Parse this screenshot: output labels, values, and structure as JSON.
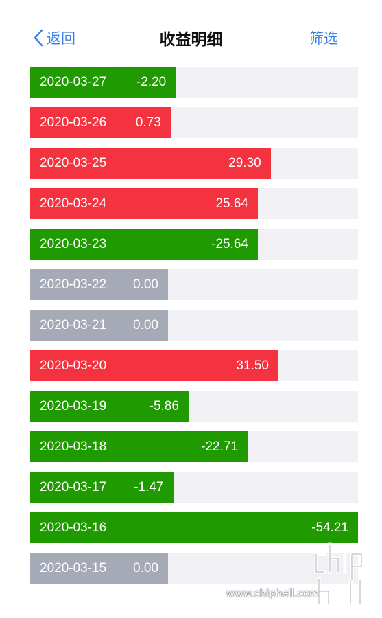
{
  "nav": {
    "back_label": "返回",
    "title": "收益明细",
    "filter_label": "筛选"
  },
  "colors": {
    "positive": "#f5323f",
    "negative": "#1f9a00",
    "zero": "#a6a9b6",
    "track": "#f1f1f5",
    "link": "#3a82e6"
  },
  "icons": {
    "back": "chevron-left-icon"
  },
  "records": [
    {
      "date": "2020-03-27",
      "amount": "-2.20",
      "value": -2.2
    },
    {
      "date": "2020-03-26",
      "amount": "0.73",
      "value": 0.73
    },
    {
      "date": "2020-03-25",
      "amount": "29.30",
      "value": 29.3
    },
    {
      "date": "2020-03-24",
      "amount": "25.64",
      "value": 25.64
    },
    {
      "date": "2020-03-23",
      "amount": "-25.64",
      "value": -25.64
    },
    {
      "date": "2020-03-22",
      "amount": "0.00",
      "value": 0.0
    },
    {
      "date": "2020-03-21",
      "amount": "0.00",
      "value": 0.0
    },
    {
      "date": "2020-03-20",
      "amount": "31.50",
      "value": 31.5
    },
    {
      "date": "2020-03-19",
      "amount": "-5.86",
      "value": -5.86
    },
    {
      "date": "2020-03-18",
      "amount": "-22.71",
      "value": -22.71
    },
    {
      "date": "2020-03-17",
      "amount": "-1.47",
      "value": -1.47
    },
    {
      "date": "2020-03-16",
      "amount": "-54.21",
      "value": -54.21
    },
    {
      "date": "2020-03-15",
      "amount": "0.00",
      "value": 0.0
    }
  ],
  "watermark": {
    "text": "www.chiphell.com",
    "logo": "chiphell"
  }
}
